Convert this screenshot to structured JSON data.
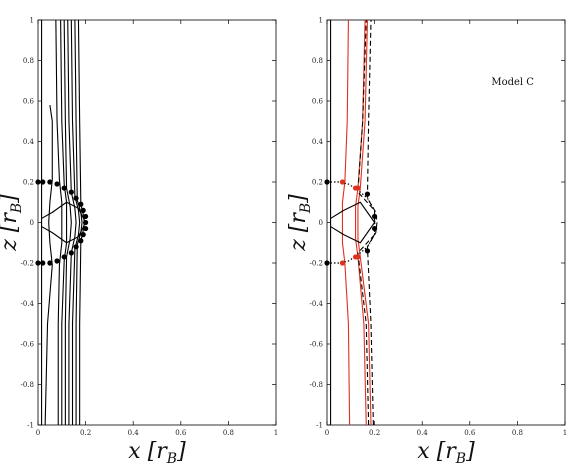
{
  "chart_data": [
    {
      "type": "line",
      "title": "",
      "xlabel": "x [r_B]",
      "ylabel": "z [r_B]",
      "xlim": [
        0,
        1
      ],
      "ylim": [
        -1,
        1
      ],
      "x_ticks": [
        "0",
        "0.2",
        "0.4",
        "0.6",
        "0.8",
        "1"
      ],
      "y_ticks": [
        "-1",
        "-0.8",
        "-0.6",
        "-0.4",
        "-0.2",
        "0",
        "0.2",
        "0.4",
        "0.6",
        "0.8",
        "1"
      ],
      "grid": false,
      "colors": {
        "field_lines": "#000000",
        "markers": "#000000"
      },
      "series": [
        {
          "style": "solid",
          "color": "#000000",
          "x": [
            0.015,
            0.015,
            0.015,
            0.015,
            0.015
          ],
          "y": [
            -1,
            -0.21,
            0,
            0.21,
            1
          ]
        },
        {
          "style": "solid",
          "color": "#000000",
          "x": [
            0.03,
            0.04,
            0.06,
            0.05,
            0.045,
            0.05,
            0.06,
            0.06,
            0.05
          ],
          "y": [
            -1,
            -0.5,
            -0.21,
            -0.1,
            0,
            0.1,
            0.21,
            0.5,
            0.58
          ]
        },
        {
          "style": "solid",
          "color": "#000000",
          "x": [
            0.085,
            0.085,
            0.09,
            0.1,
            0.1,
            0.1,
            0.09,
            0.08,
            0.075
          ],
          "y": [
            -1,
            -0.5,
            -0.21,
            -0.1,
            0,
            0.1,
            0.21,
            0.5,
            1
          ]
        },
        {
          "style": "solid",
          "color": "#000000",
          "x": [
            0.1,
            0.1,
            0.11,
            0.12,
            0.12,
            0.12,
            0.11,
            0.1,
            0.095
          ],
          "y": [
            -1,
            -0.5,
            -0.19,
            -0.1,
            0,
            0.1,
            0.19,
            0.5,
            1
          ]
        },
        {
          "style": "solid",
          "color": "#000000",
          "x": [
            0.115,
            0.115,
            0.12,
            0.135,
            0.14,
            0.135,
            0.12,
            0.115,
            0.11
          ],
          "y": [
            -1,
            -0.5,
            -0.17,
            -0.08,
            0,
            0.08,
            0.17,
            0.5,
            1
          ]
        },
        {
          "style": "solid",
          "color": "#000000",
          "x": [
            0.13,
            0.13,
            0.14,
            0.155,
            0.16,
            0.155,
            0.14,
            0.13,
            0.125
          ],
          "y": [
            -1,
            -0.5,
            -0.15,
            -0.07,
            0,
            0.07,
            0.15,
            0.5,
            1
          ]
        },
        {
          "style": "solid",
          "color": "#000000",
          "x": [
            0.145,
            0.145,
            0.155,
            0.17,
            0.175,
            0.17,
            0.155,
            0.145,
            0.14
          ],
          "y": [
            -1,
            -0.5,
            -0.13,
            -0.06,
            0,
            0.06,
            0.13,
            0.5,
            1
          ]
        },
        {
          "style": "solid",
          "color": "#000000",
          "x": [
            0.16,
            0.16,
            0.165,
            0.18,
            0.185,
            0.18,
            0.165,
            0.16,
            0.155
          ],
          "y": [
            -1,
            -0.5,
            -0.11,
            -0.05,
            0,
            0.05,
            0.11,
            0.5,
            1
          ]
        },
        {
          "style": "solid",
          "color": "#000000",
          "x": [
            0.175,
            0.175,
            0.18,
            0.19,
            0.195,
            0.19,
            0.18,
            0.175,
            0.17
          ],
          "y": [
            -1,
            -0.5,
            -0.09,
            -0.04,
            0,
            0.04,
            0.09,
            0.5,
            1
          ]
        },
        {
          "style": "solid",
          "color": "#000000",
          "x": [
            0.015,
            0.06,
            0.12,
            0.17,
            0.2,
            0.17,
            0.12,
            0.06,
            0.015
          ],
          "y": [
            -0.02,
            -0.05,
            -0.1,
            -0.07,
            0,
            0.07,
            0.1,
            0.05,
            0.02
          ]
        }
      ],
      "markers": [
        {
          "x": 0.0,
          "y": 0.2
        },
        {
          "x": 0.02,
          "y": 0.2
        },
        {
          "x": 0.05,
          "y": 0.2
        },
        {
          "x": 0.08,
          "y": 0.19
        },
        {
          "x": 0.11,
          "y": 0.17
        },
        {
          "x": 0.14,
          "y": 0.15
        },
        {
          "x": 0.16,
          "y": 0.12
        },
        {
          "x": 0.18,
          "y": 0.09
        },
        {
          "x": 0.19,
          "y": 0.06
        },
        {
          "x": 0.2,
          "y": 0.03
        },
        {
          "x": 0.2,
          "y": 0.0
        },
        {
          "x": 0.2,
          "y": -0.03
        },
        {
          "x": 0.19,
          "y": -0.06
        },
        {
          "x": 0.18,
          "y": -0.09
        },
        {
          "x": 0.16,
          "y": -0.12
        },
        {
          "x": 0.14,
          "y": -0.15
        },
        {
          "x": 0.11,
          "y": -0.17
        },
        {
          "x": 0.08,
          "y": -0.19
        },
        {
          "x": 0.05,
          "y": -0.2
        },
        {
          "x": 0.02,
          "y": -0.2
        },
        {
          "x": 0.0,
          "y": -0.2
        }
      ]
    },
    {
      "type": "line",
      "title": "",
      "xlabel": "x [r_B]",
      "ylabel": "z [r_B]",
      "xlim": [
        0,
        1
      ],
      "ylim": [
        -1,
        1
      ],
      "x_ticks": [
        "0",
        "0.2",
        "0.4",
        "0.6",
        "0.8",
        "1"
      ],
      "y_ticks": [
        "-1",
        "-0.8",
        "-0.6",
        "-0.4",
        "-0.2",
        "0",
        "0.2",
        "0.4",
        "0.6",
        "0.8",
        "1"
      ],
      "grid": false,
      "annotations": [
        {
          "text": "Model C",
          "x": 0.78,
          "y": 0.68
        }
      ],
      "colors": {
        "black": "#000000",
        "red": "#e0301e"
      },
      "series": [
        {
          "style": "solid",
          "color": "#000000",
          "x": [
            0.015,
            0.015,
            0.015,
            0.015,
            0.015
          ],
          "y": [
            -1,
            -0.2,
            0,
            0.2,
            1
          ]
        },
        {
          "style": "solid",
          "color": "#e0301e",
          "x": [
            0.095,
            0.09,
            0.075,
            0.065,
            0.065,
            0.065,
            0.075,
            0.085,
            0.09
          ],
          "y": [
            -1,
            -0.5,
            -0.2,
            -0.1,
            0,
            0.1,
            0.2,
            0.5,
            1
          ]
        },
        {
          "style": "solid",
          "color": "#e0301e",
          "x": [
            0.165,
            0.155,
            0.13,
            0.12,
            0.12,
            0.12,
            0.13,
            0.15,
            0.16
          ],
          "y": [
            -1,
            -0.5,
            -0.17,
            -0.08,
            0,
            0.08,
            0.17,
            0.5,
            1
          ]
        },
        {
          "style": "solid",
          "color": "#e0301e",
          "x": [
            0.185,
            0.175,
            0.14,
            0.13,
            0.13,
            0.13,
            0.14,
            0.16,
            0.17
          ],
          "y": [
            -1,
            -0.5,
            -0.17,
            -0.08,
            0,
            0.08,
            0.17,
            0.5,
            1
          ]
        },
        {
          "style": "dashed",
          "color": "#000000",
          "x": [
            0.175,
            0.165,
            0.13,
            0.2,
            0.2,
            0.2,
            0.13,
            0.15,
            0.165
          ],
          "y": [
            -1,
            -0.5,
            -0.15,
            -0.06,
            0,
            0.06,
            0.15,
            0.5,
            1
          ]
        },
        {
          "style": "dashed",
          "color": "#000000",
          "x": [
            0.195,
            0.185,
            0.17,
            0.205,
            0.21,
            0.205,
            0.17,
            0.175,
            0.185
          ],
          "y": [
            -1,
            -0.5,
            -0.12,
            -0.05,
            0,
            0.05,
            0.12,
            0.5,
            1
          ]
        },
        {
          "style": "solid",
          "color": "#000000",
          "x": [
            0.015,
            0.07,
            0.14,
            0.2,
            0.14,
            0.07,
            0.015
          ],
          "y": [
            -0.02,
            -0.06,
            -0.1,
            0,
            0.1,
            0.06,
            0.02
          ]
        },
        {
          "style": "dotted",
          "color": "#000000",
          "x": [
            0.0,
            0.05,
            0.09,
            0.13,
            0.17,
            0.2,
            0.2
          ],
          "y": [
            0.2,
            0.2,
            0.19,
            0.16,
            0.12,
            0.06,
            0.0
          ]
        },
        {
          "style": "dotted",
          "color": "#000000",
          "x": [
            0.0,
            0.05,
            0.09,
            0.13,
            0.17,
            0.2,
            0.2
          ],
          "y": [
            -0.2,
            -0.2,
            -0.19,
            -0.16,
            -0.12,
            -0.06,
            0.0
          ]
        }
      ],
      "markers": [
        {
          "x": 0.0,
          "y": 0.2,
          "color": "#000000"
        },
        {
          "x": 0.065,
          "y": 0.2,
          "color": "#e0301e"
        },
        {
          "x": 0.12,
          "y": 0.17,
          "color": "#e0301e"
        },
        {
          "x": 0.13,
          "y": 0.17,
          "color": "#e0301e"
        },
        {
          "x": 0.17,
          "y": 0.14,
          "color": "#000000"
        },
        {
          "x": 0.2,
          "y": 0.03,
          "color": "#000000"
        },
        {
          "x": 0.2,
          "y": -0.03,
          "color": "#000000"
        },
        {
          "x": 0.17,
          "y": -0.14,
          "color": "#000000"
        },
        {
          "x": 0.13,
          "y": -0.17,
          "color": "#e0301e"
        },
        {
          "x": 0.12,
          "y": -0.17,
          "color": "#e0301e"
        },
        {
          "x": 0.065,
          "y": -0.2,
          "color": "#e0301e"
        },
        {
          "x": 0.0,
          "y": -0.2,
          "color": "#000000"
        }
      ]
    }
  ]
}
